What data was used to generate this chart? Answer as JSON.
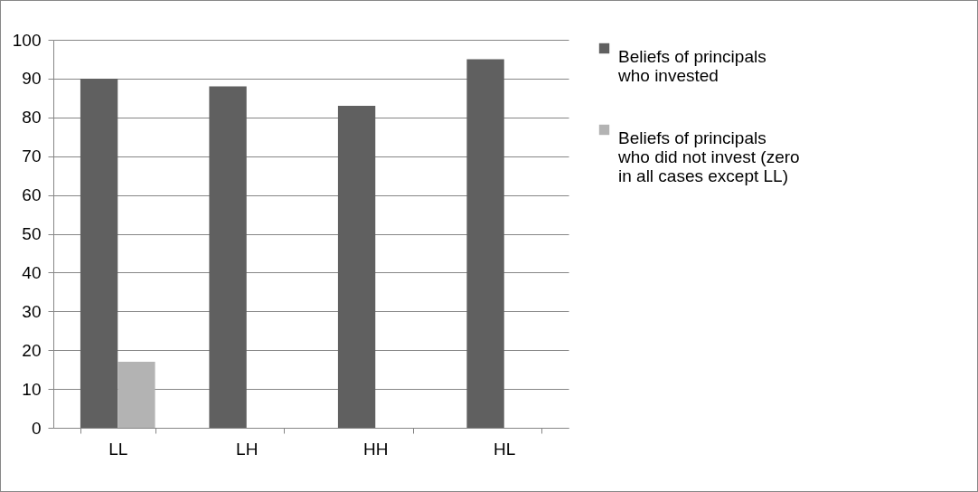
{
  "chart_data": {
    "type": "bar",
    "categories": [
      "LL",
      "LH",
      "HH",
      "HL"
    ],
    "series": [
      {
        "name": "Beliefs of principals who invested",
        "color": "#606060",
        "values": [
          90,
          88,
          83,
          95
        ]
      },
      {
        "name": "Beliefs of principals who did not invest (zero in all cases except LL)",
        "color": "#b3b3b3",
        "values": [
          17,
          0,
          0,
          0
        ]
      }
    ],
    "ylim": [
      0,
      100
    ],
    "yticks": [
      0,
      10,
      20,
      30,
      40,
      50,
      60,
      70,
      80,
      90,
      100
    ],
    "grid": "y",
    "legend": "right"
  }
}
